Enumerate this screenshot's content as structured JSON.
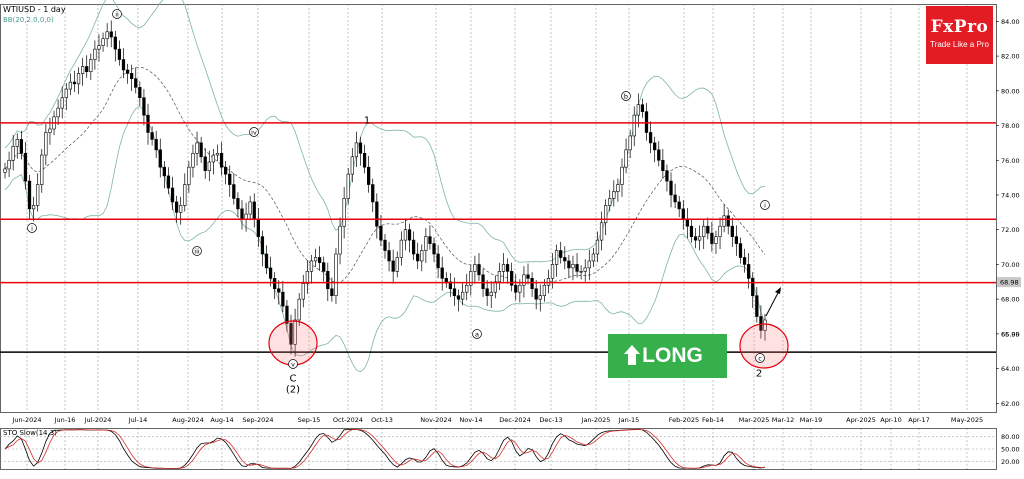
{
  "chart_data": {
    "type": "candlestick",
    "title": "WTIUSD - 1 day",
    "indicator_label": "BB(20,2.0,0,0)",
    "y_ticks": [
      "84.00",
      "82.00",
      "80.00",
      "78.00",
      "76.00",
      "74.00",
      "72.00",
      "70.00",
      "68.00",
      "66.00",
      "64.00",
      "62.00"
    ],
    "y_range": [
      61.5,
      85.0
    ],
    "last_price": "68.98",
    "price_marker": "65.99",
    "x_labels": [
      "Jun-2024",
      "Jun-16",
      "Jul-2024",
      "Jul-14",
      "Aug-2024",
      "Aug-14",
      "Sep-2024",
      "Sep-15",
      "Oct-2024",
      "Oct-13",
      "Nov-2024",
      "Nov-14",
      "Dec-2024",
      "Dec-13",
      "Jan-2025",
      "Jan-15",
      "Feb-2025",
      "Feb-14",
      "Mar-2025",
      "Mar-12",
      "Mar-19",
      "Apr-2025",
      "Apr-10",
      "Apr-17",
      "May-2025"
    ],
    "horizontal_levels": [
      {
        "value": 78.15,
        "color": "#e8000b"
      },
      {
        "value": 72.6,
        "color": "#e8000b"
      },
      {
        "value": 68.95,
        "color": "#e8000b"
      },
      {
        "value": 64.95,
        "color": "#000000"
      }
    ],
    "wave_labels": [
      "ii",
      "i",
      "iii",
      "iv",
      "v",
      "C",
      "(2)",
      "1",
      "a",
      "b",
      "i",
      "c",
      "2"
    ],
    "closes": [
      75.5,
      76.0,
      76.8,
      77.2,
      76.4,
      74.8,
      73.2,
      73.4,
      74.6,
      76.3,
      77.6,
      77.8,
      78.5,
      79.0,
      79.6,
      80.1,
      80.5,
      80.4,
      81.0,
      81.4,
      81.1,
      81.8,
      82.4,
      82.6,
      83.0,
      83.4,
      83.1,
      82.4,
      81.8,
      81.2,
      81.0,
      80.7,
      80.2,
      79.6,
      78.6,
      77.6,
      77.2,
      76.6,
      75.6,
      75.1,
      74.4,
      73.6,
      73.0,
      73.4,
      74.6,
      75.6,
      76.4,
      77.0,
      76.2,
      75.4,
      75.9,
      76.3,
      76.4,
      75.6,
      75.2,
      74.6,
      73.8,
      73.2,
      72.6,
      72.9,
      73.6,
      72.6,
      71.6,
      70.6,
      69.8,
      69.2,
      68.6,
      68.4,
      67.6,
      66.6,
      65.4,
      66.8,
      68.0,
      68.9,
      69.6,
      70.2,
      70.4,
      70.1,
      69.6,
      68.6,
      68.2,
      70.6,
      72.2,
      73.8,
      75.2,
      76.2,
      77.0,
      76.4,
      75.6,
      74.6,
      73.6,
      72.2,
      71.4,
      70.8,
      70.2,
      69.6,
      70.4,
      71.4,
      72.0,
      71.4,
      70.6,
      70.2,
      70.8,
      71.6,
      71.2,
      70.6,
      69.8,
      69.2,
      69.0,
      68.6,
      68.2,
      68.0,
      68.4,
      68.8,
      69.6,
      70.0,
      69.4,
      68.6,
      68.2,
      68.4,
      69.0,
      69.6,
      70.0,
      69.6,
      68.8,
      68.4,
      68.8,
      69.4,
      69.2,
      68.6,
      68.0,
      68.2,
      68.8,
      69.2,
      70.0,
      70.8,
      70.4,
      70.2,
      69.8,
      70.0,
      69.6,
      69.6,
      69.8,
      70.2,
      70.6,
      71.4,
      72.4,
      73.4,
      73.8,
      74.2,
      74.6,
      75.6,
      76.6,
      77.4,
      78.6,
      79.2,
      78.8,
      77.6,
      77.0,
      76.6,
      76.0,
      75.4,
      74.8,
      74.0,
      73.6,
      73.2,
      72.6,
      72.2,
      71.6,
      71.4,
      71.6,
      72.2,
      71.8,
      71.2,
      71.6,
      72.2,
      72.8,
      72.2,
      71.6,
      71.2,
      70.4,
      70.0,
      69.2,
      68.2,
      67.0,
      66.2,
      66.8
    ],
    "sto_label": "STO Slow(14,3)",
    "sto_ticks": [
      "80.00",
      "50.00",
      "20.00"
    ],
    "sto_range": [
      0,
      100
    ]
  },
  "brand": {
    "name": "FxPro",
    "tagline": "Trade Like a Pro"
  },
  "signal": {
    "label": "LONG",
    "color": "#36b04a"
  }
}
